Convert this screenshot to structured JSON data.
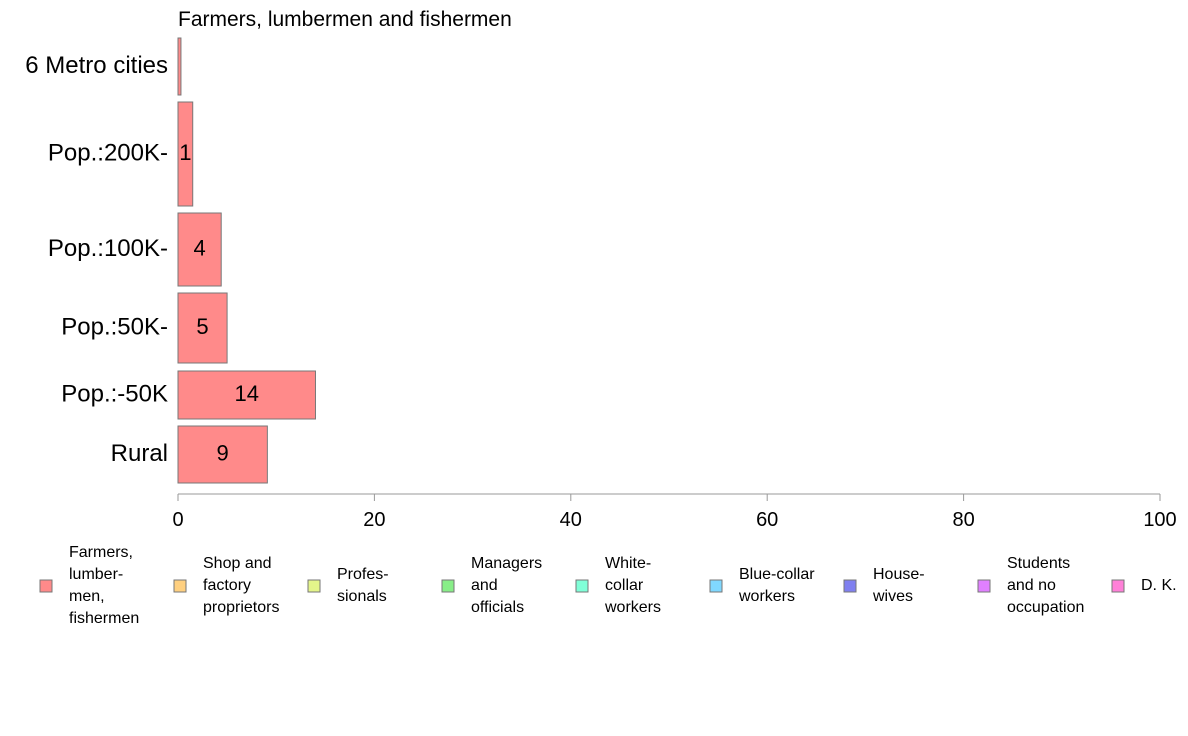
{
  "chart_data": {
    "type": "bar",
    "orientation": "horizontal",
    "title": "Farmers, lumbermen and fishermen",
    "categories": [
      "6 Metro cities",
      "Pop.:200K-",
      "Pop.:100K-",
      "Pop.:50K-",
      "Pop.:-50K",
      "Rural"
    ],
    "values": [
      0.3,
      1.5,
      4.4,
      5.0,
      14.0,
      9.1
    ],
    "data_labels": [
      "",
      "1",
      "4",
      "5",
      "14",
      "9"
    ],
    "xlim": [
      0,
      100
    ],
    "xticks": [
      0,
      20,
      40,
      60,
      80,
      100
    ],
    "xtick_labels": [
      "0",
      "20",
      "40",
      "60",
      "80",
      "100"
    ],
    "grid": false,
    "legend_position": "bottom",
    "bar_color": "#ff8a8a",
    "legend": [
      {
        "lines": [
          "Farmers,",
          "lumber-",
          "men,",
          "fishermen"
        ],
        "color": "#ff8a8a"
      },
      {
        "lines": [
          "Shop and",
          "factory",
          "proprietors"
        ],
        "color": "#ffd080"
      },
      {
        "lines": [
          "Profes-",
          "sionals"
        ],
        "color": "#e4f58a"
      },
      {
        "lines": [
          "Managers",
          "and",
          "officials"
        ],
        "color": "#88ee88"
      },
      {
        "lines": [
          "White-",
          "collar",
          "workers"
        ],
        "color": "#80ffd8"
      },
      {
        "lines": [
          "Blue-collar",
          "workers"
        ],
        "color": "#80d8ff"
      },
      {
        "lines": [
          "House-",
          "wives"
        ],
        "color": "#8080f0"
      },
      {
        "lines": [
          "Students",
          "and no",
          "occupation"
        ],
        "color": "#e080ff"
      },
      {
        "lines": [
          "D. K."
        ],
        "color": "#ff80d8"
      }
    ]
  }
}
